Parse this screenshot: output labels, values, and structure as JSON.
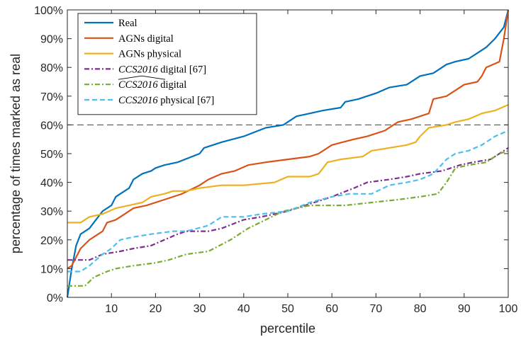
{
  "chart_data": {
    "type": "line",
    "xlabel": "percentile",
    "ylabel": "percentage of times marked as real",
    "xlim": [
      0,
      100
    ],
    "ylim": [
      0,
      100
    ],
    "x_ticks": [
      10,
      20,
      30,
      40,
      50,
      60,
      70,
      80,
      90,
      100
    ],
    "x_tick_labels": [
      "10",
      "20",
      "30",
      "40",
      "50",
      "60",
      "70",
      "80",
      "90",
      "100"
    ],
    "y_ticks": [
      0,
      10,
      20,
      30,
      40,
      50,
      60,
      70,
      80,
      90,
      100
    ],
    "y_tick_labels": [
      "0%",
      "10%",
      "20%",
      "30%",
      "40%",
      "50%",
      "60%",
      "70%",
      "80%",
      "90%",
      "100%"
    ],
    "grid": false,
    "legend_position": "top-left",
    "reference_line": {
      "y": 60,
      "style": "dashed",
      "color": "#404040"
    },
    "series": [
      {
        "name": "Real",
        "legend_parts": [
          {
            "text": "Real",
            "italic": false
          }
        ],
        "color": "#0072BD",
        "dash": "solid",
        "points": [
          [
            0,
            0
          ],
          [
            1,
            10
          ],
          [
            2,
            18
          ],
          [
            3,
            22
          ],
          [
            5,
            24
          ],
          [
            6,
            26
          ],
          [
            8,
            30
          ],
          [
            10,
            32
          ],
          [
            11,
            35
          ],
          [
            12,
            36
          ],
          [
            14,
            38
          ],
          [
            15,
            41
          ],
          [
            17,
            43
          ],
          [
            19,
            44
          ],
          [
            20,
            45
          ],
          [
            22,
            46
          ],
          [
            25,
            47
          ],
          [
            30,
            50
          ],
          [
            31,
            52
          ],
          [
            35,
            54
          ],
          [
            40,
            56
          ],
          [
            45,
            59
          ],
          [
            49,
            60
          ],
          [
            50,
            61
          ],
          [
            52,
            63
          ],
          [
            55,
            64
          ],
          [
            58,
            65
          ],
          [
            62,
            66
          ],
          [
            63,
            68
          ],
          [
            66,
            69
          ],
          [
            70,
            71
          ],
          [
            73,
            73
          ],
          [
            77,
            74
          ],
          [
            80,
            77
          ],
          [
            83,
            78
          ],
          [
            86,
            81
          ],
          [
            88,
            82
          ],
          [
            91,
            83
          ],
          [
            93,
            85
          ],
          [
            95,
            87
          ],
          [
            97,
            90
          ],
          [
            99,
            94
          ],
          [
            100,
            100
          ]
        ]
      },
      {
        "name": "AGNs digital",
        "legend_parts": [
          {
            "text": "AGNs digital",
            "italic": false
          }
        ],
        "color": "#D95319",
        "dash": "solid",
        "points": [
          [
            0,
            10
          ],
          [
            1,
            11
          ],
          [
            3,
            17
          ],
          [
            5,
            20
          ],
          [
            7,
            22
          ],
          [
            8,
            23
          ],
          [
            9,
            26
          ],
          [
            11,
            27
          ],
          [
            13,
            29
          ],
          [
            15,
            31
          ],
          [
            18,
            32
          ],
          [
            22,
            34
          ],
          [
            26,
            36
          ],
          [
            30,
            39
          ],
          [
            32,
            41
          ],
          [
            35,
            43
          ],
          [
            38,
            44
          ],
          [
            41,
            46
          ],
          [
            45,
            47
          ],
          [
            50,
            48
          ],
          [
            55,
            49
          ],
          [
            57,
            50
          ],
          [
            60,
            53
          ],
          [
            65,
            55
          ],
          [
            68,
            56
          ],
          [
            72,
            58
          ],
          [
            75,
            61
          ],
          [
            78,
            62
          ],
          [
            82,
            64
          ],
          [
            83,
            69
          ],
          [
            86,
            70
          ],
          [
            88,
            72
          ],
          [
            90,
            74
          ],
          [
            93,
            75
          ],
          [
            94,
            77
          ],
          [
            95,
            80
          ],
          [
            98,
            82
          ],
          [
            99,
            90
          ],
          [
            100,
            100
          ]
        ]
      },
      {
        "name": "AGNs physical",
        "legend_parts": [
          {
            "text": "AGNs physical",
            "italic": false
          }
        ],
        "color": "#EDB120",
        "dash": "solid",
        "points": [
          [
            0,
            26
          ],
          [
            3,
            26
          ],
          [
            5,
            28
          ],
          [
            8,
            29
          ],
          [
            11,
            31
          ],
          [
            14,
            32
          ],
          [
            17,
            33
          ],
          [
            19,
            35
          ],
          [
            22,
            36
          ],
          [
            24,
            37
          ],
          [
            27,
            37
          ],
          [
            30,
            38
          ],
          [
            35,
            39
          ],
          [
            40,
            39
          ],
          [
            47,
            40
          ],
          [
            50,
            42
          ],
          [
            55,
            42
          ],
          [
            57,
            43
          ],
          [
            59,
            47
          ],
          [
            62,
            48
          ],
          [
            67,
            49
          ],
          [
            69,
            51
          ],
          [
            73,
            52
          ],
          [
            77,
            53
          ],
          [
            79,
            54
          ],
          [
            80,
            56
          ],
          [
            82,
            59
          ],
          [
            86,
            60
          ],
          [
            88,
            61
          ],
          [
            91,
            62
          ],
          [
            94,
            64
          ],
          [
            97,
            65
          ],
          [
            100,
            67
          ]
        ]
      },
      {
        "name": "CCS2016 digital [67]",
        "legend_parts": [
          {
            "text": "CCS2016",
            "italic": true
          },
          {
            "text": " digital [67]",
            "italic": false
          }
        ],
        "color": "#7E2F8E",
        "dash": "dashdot",
        "points": [
          [
            0,
            13
          ],
          [
            5,
            13
          ],
          [
            8,
            15
          ],
          [
            12,
            16
          ],
          [
            15,
            17
          ],
          [
            19,
            18
          ],
          [
            22,
            20
          ],
          [
            25,
            22
          ],
          [
            27,
            23
          ],
          [
            32,
            23
          ],
          [
            35,
            24
          ],
          [
            40,
            27
          ],
          [
            44,
            28
          ],
          [
            50,
            30
          ],
          [
            56,
            33
          ],
          [
            60,
            35
          ],
          [
            65,
            38
          ],
          [
            68,
            40
          ],
          [
            73,
            41
          ],
          [
            77,
            42
          ],
          [
            80,
            43
          ],
          [
            85,
            44
          ],
          [
            89,
            46
          ],
          [
            92,
            47
          ],
          [
            96,
            48
          ],
          [
            100,
            52
          ]
        ]
      },
      {
        "name": "CCS2016 digital",
        "legend_parts": [
          {
            "text": "CCS2016",
            "italic": true,
            "hat": true
          },
          {
            "text": " digital",
            "italic": false
          }
        ],
        "color": "#77AC30",
        "dash": "dashdot",
        "points": [
          [
            0,
            4
          ],
          [
            4,
            4
          ],
          [
            6,
            7
          ],
          [
            9,
            9
          ],
          [
            11,
            10
          ],
          [
            15,
            11
          ],
          [
            20,
            12
          ],
          [
            23,
            13
          ],
          [
            27,
            15
          ],
          [
            32,
            16
          ],
          [
            37,
            20
          ],
          [
            41,
            24
          ],
          [
            45,
            27
          ],
          [
            49,
            30
          ],
          [
            52,
            31
          ],
          [
            55,
            32
          ],
          [
            60,
            32
          ],
          [
            63,
            32
          ],
          [
            69,
            33
          ],
          [
            75,
            34
          ],
          [
            80,
            35
          ],
          [
            84,
            36
          ],
          [
            86,
            40
          ],
          [
            88,
            45
          ],
          [
            91,
            46
          ],
          [
            95,
            47
          ],
          [
            98,
            50
          ],
          [
            100,
            51
          ]
        ]
      },
      {
        "name": "CCS2016 physical [67]",
        "legend_parts": [
          {
            "text": "CCS2016",
            "italic": true
          },
          {
            "text": " physical [67]",
            "italic": false
          }
        ],
        "color": "#4DBEEE",
        "dash": "dashed",
        "points": [
          [
            0,
            9
          ],
          [
            3,
            9
          ],
          [
            5,
            11
          ],
          [
            8,
            15
          ],
          [
            10,
            17
          ],
          [
            12,
            20
          ],
          [
            15,
            21
          ],
          [
            19,
            22
          ],
          [
            24,
            23
          ],
          [
            27,
            23
          ],
          [
            32,
            25
          ],
          [
            35,
            28
          ],
          [
            40,
            28
          ],
          [
            44,
            29
          ],
          [
            50,
            30
          ],
          [
            55,
            33
          ],
          [
            60,
            35
          ],
          [
            64,
            36
          ],
          [
            69,
            36
          ],
          [
            73,
            39
          ],
          [
            77,
            40
          ],
          [
            80,
            41
          ],
          [
            83,
            43
          ],
          [
            86,
            48
          ],
          [
            88,
            50
          ],
          [
            91,
            51
          ],
          [
            94,
            53
          ],
          [
            97,
            56
          ],
          [
            100,
            58
          ]
        ]
      }
    ]
  }
}
